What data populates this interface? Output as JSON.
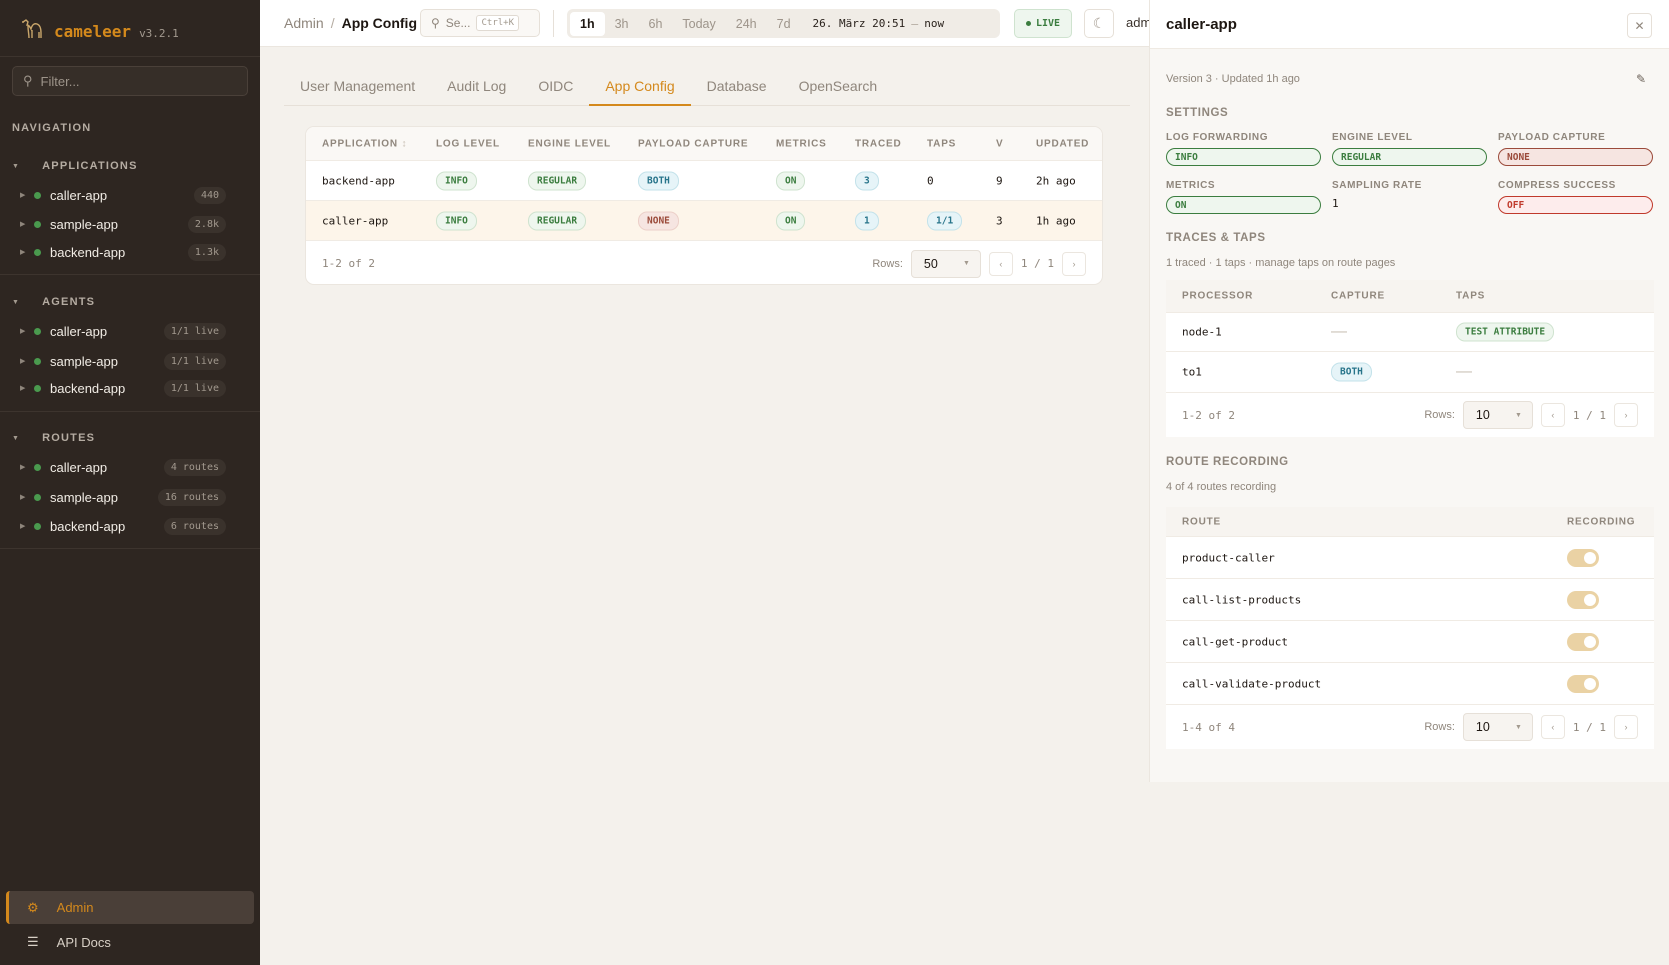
{
  "sidebar": {
    "brand": "cameleer",
    "version": "v3.2.1",
    "filter_placeholder": "Filter...",
    "nav_heading": "NAVIGATION",
    "groups": [
      {
        "label": "APPLICATIONS",
        "items": [
          {
            "label": "caller-app",
            "count": "440"
          },
          {
            "label": "sample-app",
            "count": "2.8k"
          },
          {
            "label": "backend-app",
            "count": "1.3k"
          }
        ]
      },
      {
        "label": "AGENTS",
        "items": [
          {
            "label": "caller-app",
            "count": "1/1 live"
          },
          {
            "label": "sample-app",
            "count": "1/1 live"
          },
          {
            "label": "backend-app",
            "count": "1/1 live"
          }
        ]
      },
      {
        "label": "ROUTES",
        "items": [
          {
            "label": "caller-app",
            "count": "4 routes"
          },
          {
            "label": "sample-app",
            "count": "16 routes"
          },
          {
            "label": "backend-app",
            "count": "6 routes"
          }
        ]
      }
    ],
    "admin": "Admin",
    "api_docs": "API Docs",
    "status_color": "#4a9a4e",
    "accent": "#d4891c"
  },
  "topbar": {
    "breadcrumb": [
      "Admin",
      "App Config"
    ],
    "search_placeholder": "Se...",
    "search_shortcut": "Ctrl+K",
    "ranges": [
      "1h",
      "3h",
      "6h",
      "Today",
      "24h",
      "7d"
    ],
    "active_range": "1h",
    "from": "26. März 20:51",
    "to": "now",
    "live": "LIVE",
    "user": "adm"
  },
  "tabs": [
    "User Management",
    "Audit Log",
    "OIDC",
    "App Config",
    "Database",
    "OpenSearch"
  ],
  "active_tab": "App Config",
  "table": {
    "columns": [
      "APPLICATION",
      "LOG LEVEL",
      "ENGINE LEVEL",
      "PAYLOAD CAPTURE",
      "METRICS",
      "TRACED",
      "TAPS",
      "V",
      "UPDATED"
    ],
    "rows": [
      {
        "app": "backend-app",
        "log": "INFO",
        "engine": "REGULAR",
        "payload": "BOTH",
        "metrics": "ON",
        "traced": "3",
        "taps": "0",
        "v": "9",
        "updated": "2h ago"
      },
      {
        "app": "caller-app",
        "log": "INFO",
        "engine": "REGULAR",
        "payload": "NONE",
        "metrics": "ON",
        "traced": "1",
        "taps": "1/1",
        "v": "3",
        "updated": "1h ago"
      }
    ],
    "count": "1-2 of 2",
    "rows_label": "Rows:",
    "rows_value": "50",
    "page": "1 / 1"
  },
  "panel": {
    "title": "caller-app",
    "meta": "Version 3 · Updated 1h  ago",
    "settings_heading": "SETTINGS",
    "settings": [
      {
        "label": "LOG FORWARDING",
        "value": "INFO"
      },
      {
        "label": "ENGINE LEVEL",
        "value": "REGULAR"
      },
      {
        "label": "PAYLOAD CAPTURE",
        "value": "NONE"
      },
      {
        "label": "METRICS",
        "value": "ON"
      },
      {
        "label": "SAMPLING RATE",
        "value": "1"
      },
      {
        "label": "COMPRESS SUCCESS",
        "value": "OFF"
      }
    ],
    "traces_heading": "TRACES & TAPS",
    "traces_sub": "1 traced · 1 taps · manage taps on route pages",
    "traces_columns": [
      "PROCESSOR",
      "CAPTURE",
      "TAPS"
    ],
    "traces_rows": [
      {
        "processor": "node-1",
        "capture": "—",
        "taps": "TEST ATTRIBUTE"
      },
      {
        "processor": "to1",
        "capture": "BOTH",
        "taps": "—"
      }
    ],
    "traces_count": "1-2 of 2",
    "traces_rows_value": "10",
    "traces_page": "1 / 1",
    "recording_heading": "ROUTE RECORDING",
    "recording_sub": "4 of 4 routes recording",
    "recording_columns": [
      "ROUTE",
      "RECORDING"
    ],
    "routes": [
      {
        "name": "product-caller",
        "recording": true
      },
      {
        "name": "call-list-products",
        "recording": true
      },
      {
        "name": "call-get-product",
        "recording": true
      },
      {
        "name": "call-validate-product",
        "recording": true
      }
    ],
    "recording_count": "1-4 of 4",
    "recording_rows_value": "10",
    "recording_page": "1 / 1",
    "rows_label": "Rows:"
  }
}
